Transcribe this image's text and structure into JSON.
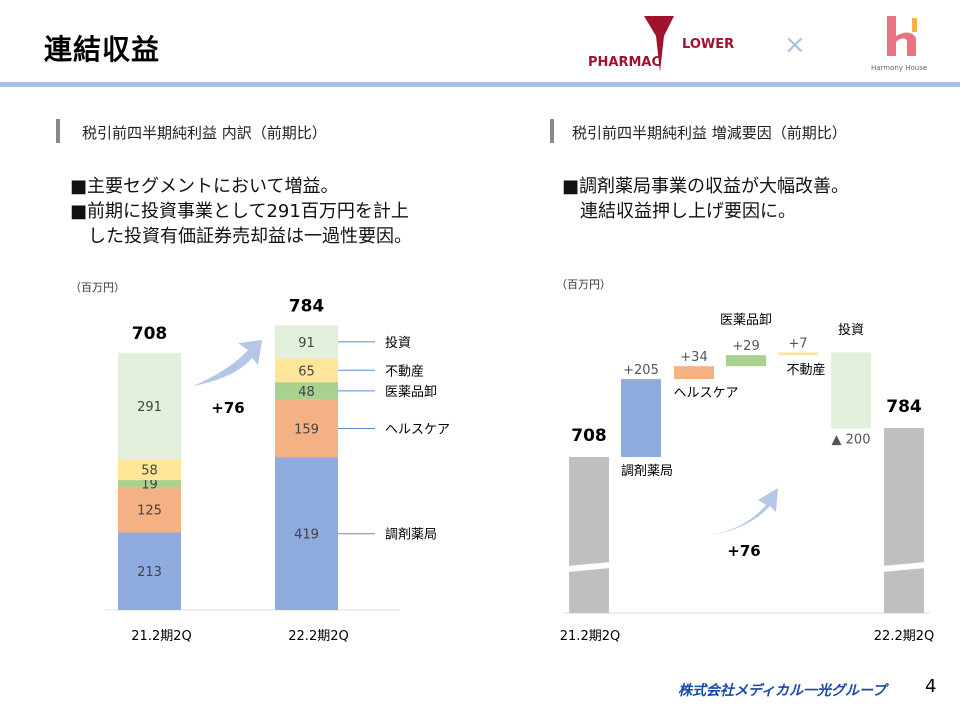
{
  "header": {
    "title": "連結収益",
    "logo_left": "PHARMAC FLOWER",
    "separator": "×",
    "logo_right": "Harmony House"
  },
  "left": {
    "heading": "税引前四半期純利益 内訳（前期比）",
    "bullets": [
      "■主要セグメントにおいて増益。",
      "■前期に投資事業として291百万円を計上",
      "　した投資有価証券売却益は一過性要因。"
    ]
  },
  "right": {
    "heading": "税引前四半期純利益 増減要因（前期比）",
    "bullets": [
      "■調剤薬局事業の収益が大幅改善。",
      "　連結収益押し上げ要因に。"
    ]
  },
  "colors": {
    "調剤薬局": "#8faadc",
    "ヘルスケア": "#f4b183",
    "医薬品卸": "#a9d18e",
    "不動産": "#ffe699",
    "投資": "#e2efda",
    "total": "#bfbfbf",
    "arrow": "#b4c7e7"
  },
  "chart_data": [
    {
      "type": "bar",
      "stacked": true,
      "unit": "（百万円）",
      "categories": [
        "21.2期2Q",
        "22.2期2Q"
      ],
      "series": [
        {
          "name": "調剤薬局",
          "values": [
            213,
            419
          ]
        },
        {
          "name": "ヘルスケア",
          "values": [
            125,
            159
          ]
        },
        {
          "name": "医薬品卸",
          "values": [
            19,
            48
          ]
        },
        {
          "name": "不動産",
          "values": [
            58,
            65
          ]
        },
        {
          "name": "投資",
          "values": [
            291,
            91
          ]
        }
      ],
      "totals": [
        "708",
        "784"
      ],
      "change": "+76"
    },
    {
      "type": "waterfall",
      "unit": "（百万円）",
      "start": {
        "label": "21.2期2Q",
        "value": 708,
        "text": "708"
      },
      "end": {
        "label": "22.2期2Q",
        "value": 784,
        "text": "784"
      },
      "steps": [
        {
          "name": "調剤薬局",
          "value": 205,
          "text": "+205"
        },
        {
          "name": "ヘルスケア",
          "value": 34,
          "text": "+34"
        },
        {
          "name": "医薬品卸",
          "value": 29,
          "text": "+29"
        },
        {
          "name": "不動産",
          "value": 7,
          "text": "+7"
        },
        {
          "name": "投資",
          "value": -200,
          "text": "▲ 200"
        }
      ],
      "change": "+76",
      "axis_break": true
    }
  ],
  "footer": {
    "company": "株式会社メディカル一光グループ",
    "page": "4"
  }
}
